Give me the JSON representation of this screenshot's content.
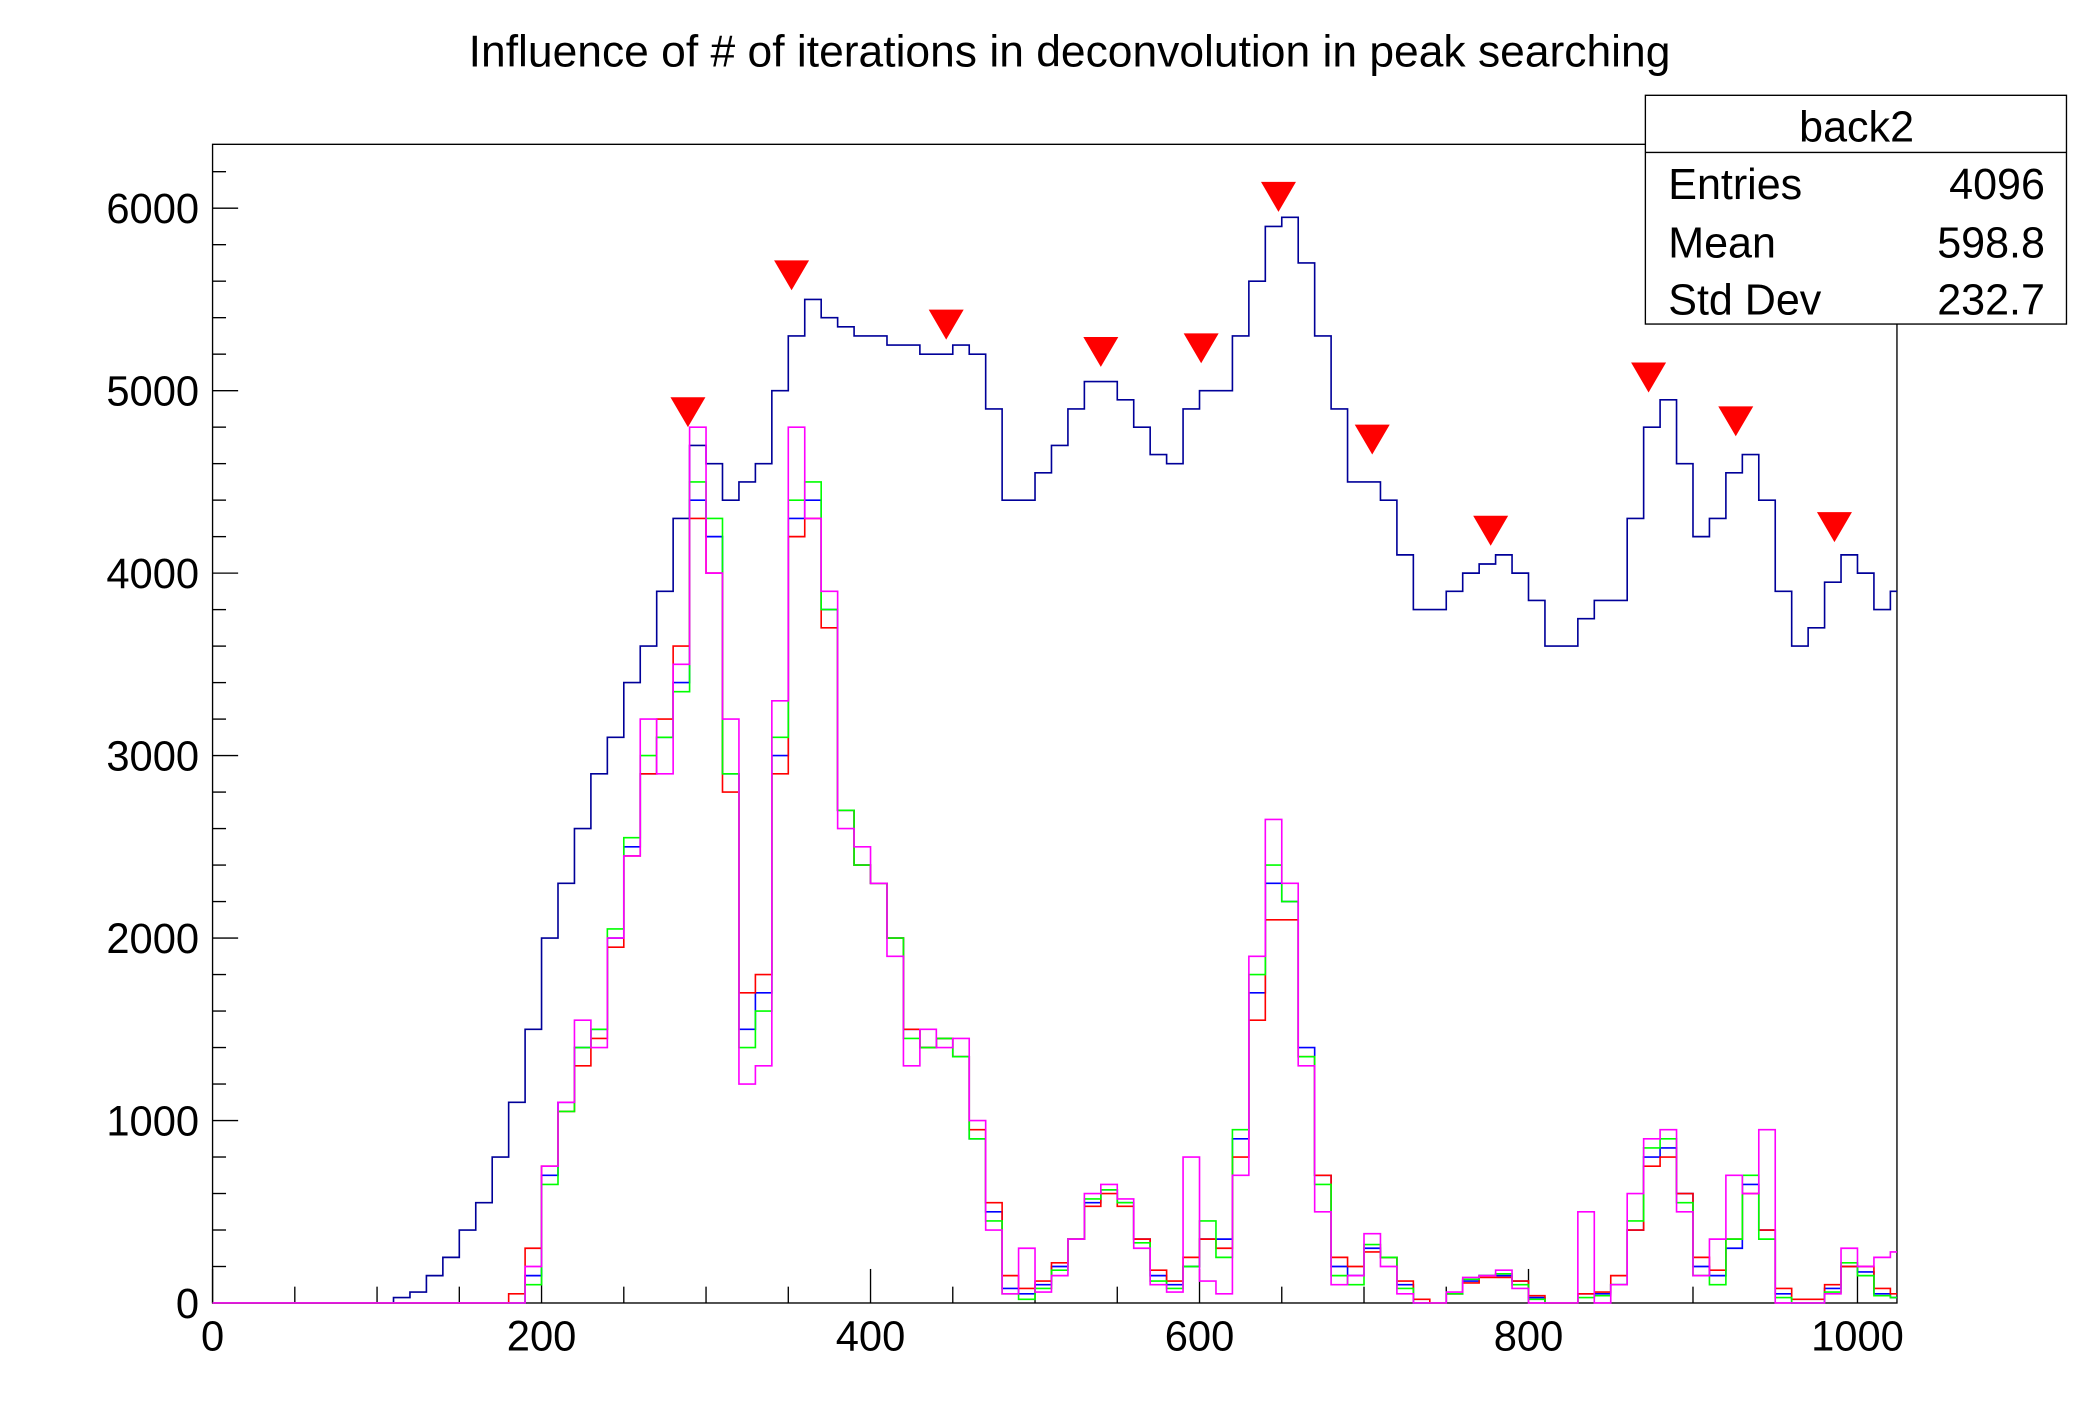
{
  "chart_data": {
    "type": "line",
    "title": "Influence of # of iterations in deconvolution in peak searching",
    "xlabel": "",
    "ylabel": "",
    "xlim": [
      0,
      1024
    ],
    "ylim": [
      0,
      6350
    ],
    "x_ticks": [
      0,
      200,
      400,
      600,
      800,
      1000
    ],
    "y_ticks": [
      0,
      1000,
      2000,
      3000,
      4000,
      5000,
      6000
    ],
    "grid": false,
    "x": [
      0,
      10,
      20,
      30,
      40,
      50,
      60,
      70,
      80,
      90,
      100,
      110,
      120,
      130,
      140,
      150,
      160,
      170,
      180,
      190,
      200,
      210,
      220,
      230,
      240,
      250,
      260,
      270,
      280,
      290,
      300,
      310,
      320,
      330,
      340,
      350,
      360,
      370,
      380,
      390,
      400,
      410,
      420,
      430,
      440,
      450,
      460,
      470,
      480,
      490,
      500,
      510,
      520,
      530,
      540,
      550,
      560,
      570,
      580,
      590,
      600,
      610,
      620,
      630,
      640,
      650,
      660,
      670,
      680,
      690,
      700,
      710,
      720,
      730,
      740,
      750,
      760,
      770,
      780,
      790,
      800,
      810,
      820,
      830,
      840,
      850,
      860,
      870,
      880,
      890,
      900,
      910,
      920,
      930,
      940,
      950,
      960,
      970,
      980,
      990,
      1000,
      1010,
      1020
    ],
    "series": [
      {
        "color": "#000099",
        "values": [
          0,
          0,
          0,
          0,
          0,
          0,
          0,
          0,
          0,
          0,
          0,
          30,
          60,
          150,
          250,
          400,
          550,
          800,
          1100,
          1500,
          2000,
          2300,
          2600,
          2900,
          3100,
          3400,
          3600,
          3900,
          4300,
          4700,
          4600,
          4400,
          4500,
          4600,
          5000,
          5300,
          5500,
          5400,
          5350,
          5300,
          5300,
          5250,
          5250,
          5200,
          5200,
          5250,
          5200,
          4900,
          4400,
          4400,
          4550,
          4700,
          4900,
          5050,
          5050,
          4950,
          4800,
          4650,
          4600,
          4900,
          5000,
          5000,
          5300,
          5600,
          5900,
          5950,
          5700,
          5300,
          4900,
          4500,
          4500,
          4400,
          4100,
          3800,
          3800,
          3900,
          4000,
          4050,
          4100,
          4000,
          3850,
          3600,
          3600,
          3750,
          3850,
          3850,
          4300,
          4800,
          4950,
          4600,
          4200,
          4300,
          4550,
          4650,
          4400,
          3900,
          3600,
          3700,
          3950,
          4100,
          4000,
          3800,
          3900
        ]
      },
      {
        "color": "#0000ff",
        "values": [
          0,
          0,
          0,
          0,
          0,
          0,
          0,
          0,
          0,
          0,
          0,
          0,
          0,
          0,
          0,
          0,
          0,
          0,
          0,
          150,
          700,
          1100,
          1400,
          1500,
          2000,
          2500,
          2900,
          3100,
          3400,
          4400,
          4200,
          2900,
          1500,
          1700,
          3000,
          4300,
          4400,
          3800,
          2700,
          2400,
          2300,
          2000,
          1500,
          1400,
          1450,
          1350,
          900,
          500,
          80,
          50,
          100,
          200,
          350,
          550,
          620,
          550,
          350,
          150,
          100,
          200,
          350,
          350,
          900,
          1700,
          2300,
          2200,
          1400,
          700,
          200,
          150,
          300,
          250,
          100,
          0,
          0,
          50,
          120,
          150,
          150,
          120,
          30,
          0,
          0,
          50,
          50,
          100,
          400,
          800,
          850,
          600,
          200,
          150,
          300,
          650,
          400,
          50,
          0,
          0,
          80,
          200,
          170,
          50,
          30
        ]
      },
      {
        "color": "#ff0000",
        "values": [
          0,
          0,
          0,
          0,
          0,
          0,
          0,
          0,
          0,
          0,
          0,
          0,
          0,
          0,
          0,
          0,
          0,
          0,
          50,
          300,
          750,
          1050,
          1300,
          1450,
          1950,
          2450,
          2900,
          3200,
          3600,
          4300,
          4000,
          2800,
          1700,
          1800,
          2900,
          4200,
          4300,
          3700,
          2700,
          2400,
          2300,
          2000,
          1500,
          1400,
          1450,
          1350,
          950,
          550,
          150,
          80,
          120,
          220,
          350,
          530,
          600,
          530,
          350,
          180,
          120,
          250,
          350,
          300,
          800,
          1550,
          2100,
          2100,
          1350,
          700,
          250,
          200,
          280,
          250,
          120,
          20,
          0,
          50,
          110,
          140,
          140,
          120,
          40,
          0,
          0,
          50,
          60,
          150,
          400,
          750,
          800,
          600,
          250,
          180,
          350,
          600,
          400,
          80,
          20,
          20,
          100,
          200,
          200,
          80,
          50
        ]
      },
      {
        "color": "#00ff00",
        "values": [
          0,
          0,
          0,
          0,
          0,
          0,
          0,
          0,
          0,
          0,
          0,
          0,
          0,
          0,
          0,
          0,
          0,
          0,
          0,
          100,
          650,
          1050,
          1400,
          1500,
          2050,
          2550,
          3000,
          3100,
          3350,
          4500,
          4300,
          2900,
          1400,
          1600,
          3100,
          4400,
          4500,
          3800,
          2700,
          2400,
          2300,
          2000,
          1450,
          1400,
          1450,
          1350,
          900,
          450,
          50,
          20,
          80,
          180,
          350,
          570,
          620,
          550,
          330,
          120,
          80,
          200,
          450,
          250,
          950,
          1800,
          2400,
          2200,
          1350,
          650,
          150,
          100,
          320,
          250,
          80,
          0,
          0,
          50,
          130,
          150,
          160,
          100,
          20,
          0,
          0,
          30,
          40,
          100,
          450,
          850,
          900,
          550,
          150,
          100,
          350,
          700,
          350,
          30,
          0,
          0,
          60,
          220,
          150,
          40,
          30
        ]
      },
      {
        "color": "#ff00ff",
        "values": [
          0,
          0,
          0,
          0,
          0,
          0,
          0,
          0,
          0,
          0,
          0,
          0,
          0,
          0,
          0,
          0,
          0,
          0,
          0,
          200,
          750,
          1100,
          1550,
          1400,
          2000,
          2450,
          3200,
          2900,
          3500,
          4800,
          4000,
          3200,
          1200,
          1300,
          3300,
          4800,
          4300,
          3900,
          2600,
          2500,
          2300,
          1900,
          1300,
          1500,
          1400,
          1450,
          1000,
          400,
          50,
          300,
          60,
          150,
          350,
          600,
          650,
          570,
          300,
          100,
          60,
          800,
          120,
          50,
          700,
          1900,
          2650,
          2300,
          1300,
          500,
          100,
          150,
          380,
          200,
          50,
          0,
          0,
          60,
          140,
          150,
          180,
          80,
          0,
          0,
          0,
          500,
          0,
          100,
          600,
          900,
          950,
          500,
          150,
          350,
          700,
          600,
          950,
          0,
          0,
          0,
          50,
          300,
          200,
          250,
          280
        ]
      }
    ],
    "peak_markers": {
      "color": "#ff0000",
      "x": [
        289,
        352,
        446,
        540,
        601,
        648,
        705,
        777,
        873,
        926,
        986
      ],
      "y": [
        4800,
        5550,
        5280,
        5130,
        5150,
        5980,
        4650,
        4150,
        4990,
        4750,
        4170
      ]
    },
    "stats_box": {
      "title": "back2",
      "rows": [
        {
          "label": "Entries",
          "value": "4096"
        },
        {
          "label": "Mean",
          "value": "598.8"
        },
        {
          "label": "Std Dev",
          "value": "232.7"
        }
      ]
    }
  }
}
